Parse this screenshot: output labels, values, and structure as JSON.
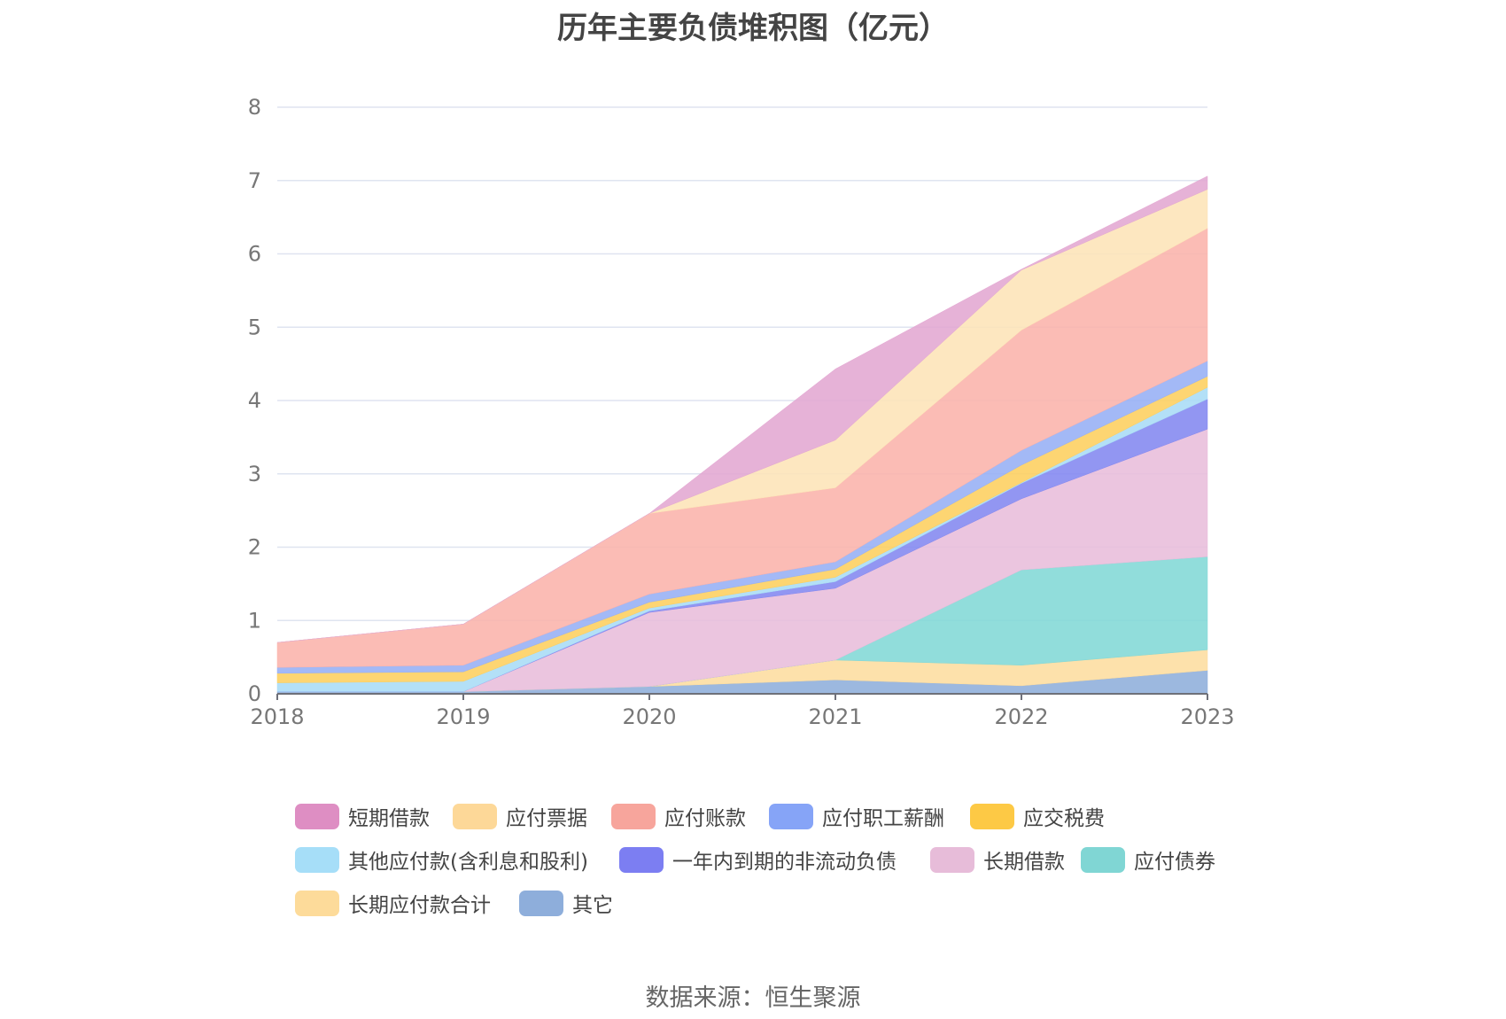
{
  "chart_data": {
    "type": "area",
    "stacked": true,
    "title": "历年主要负债堆积图（亿元）",
    "xlabel": "",
    "ylabel": "",
    "x": [
      "2018",
      "2019",
      "2020",
      "2021",
      "2022",
      "2023"
    ],
    "ylim": [
      0,
      8
    ],
    "yticks": [
      "0",
      "1",
      "2",
      "3",
      "4",
      "5",
      "6",
      "7",
      "8"
    ],
    "grid": true,
    "legend_position": "bottom",
    "series_bottom_to_top": [
      {
        "name": "其它",
        "color": "#8eaedb",
        "values": [
          0.03,
          0.03,
          0.1,
          0.19,
          0.11,
          0.32
        ]
      },
      {
        "name": "长期应付款合计",
        "color": "#fddd9f",
        "values": [
          0,
          0,
          0,
          0.27,
          0.28,
          0.28
        ]
      },
      {
        "name": "应付债券",
        "color": "#82d8d6",
        "values": [
          0,
          0,
          0,
          0,
          1.3,
          1.27
        ]
      },
      {
        "name": "长期借款",
        "color": "#e8bddb",
        "values": [
          0,
          0,
          1.01,
          0.98,
          0.97,
          1.74
        ]
      },
      {
        "name": "一年内到期的非流动负债",
        "color": "#8388f0",
        "values": [
          0,
          0,
          0.02,
          0.09,
          0.21,
          0.41
        ]
      },
      {
        "name": "其他应付款(含利息和股利)",
        "color": "#a8dcf6",
        "values": [
          0.12,
          0.14,
          0.04,
          0.06,
          0.01,
          0.16
        ]
      },
      {
        "name": "应交税费",
        "color": "#fdcf5e",
        "values": [
          0.13,
          0.13,
          0.08,
          0.11,
          0.24,
          0.15
        ]
      },
      {
        "name": "应付职工薪酬",
        "color": "#96aff5",
        "values": [
          0.08,
          0.09,
          0.11,
          0.1,
          0.2,
          0.21
        ]
      },
      {
        "name": "应付账款",
        "color": "#fbb3ab",
        "values": [
          0.34,
          0.56,
          1.1,
          1.01,
          1.64,
          1.81
        ]
      },
      {
        "name": "应付票据",
        "color": "#fde4b7",
        "values": [
          0,
          0,
          0,
          0.65,
          0.82,
          0.53
        ]
      },
      {
        "name": "短期借款",
        "color": "#e3a7d2",
        "values": [
          0,
          0,
          0,
          0.97,
          0.01,
          0.18
        ]
      }
    ],
    "legend": [
      {
        "name": "短期借款",
        "color": "#de8ec3"
      },
      {
        "name": "应付票据",
        "color": "#fdd898"
      },
      {
        "name": "应付账款",
        "color": "#f7a59c"
      },
      {
        "name": "应付职工薪酬",
        "color": "#86a4f7"
      },
      {
        "name": "应交税费",
        "color": "#fdc945"
      },
      {
        "name": "其他应付款(含利息和股利)",
        "color": "#a6def8"
      },
      {
        "name": "一年内到期的非流动负债",
        "color": "#7c7ef2"
      },
      {
        "name": "长期借款",
        "color": "#e7bcd9"
      },
      {
        "name": "应付债券",
        "color": "#80d6d4"
      },
      {
        "name": "长期应付款合计",
        "color": "#fddb9a"
      },
      {
        "name": "其它",
        "color": "#8eaedb"
      }
    ]
  },
  "source_note": "数据来源：恒生聚源"
}
